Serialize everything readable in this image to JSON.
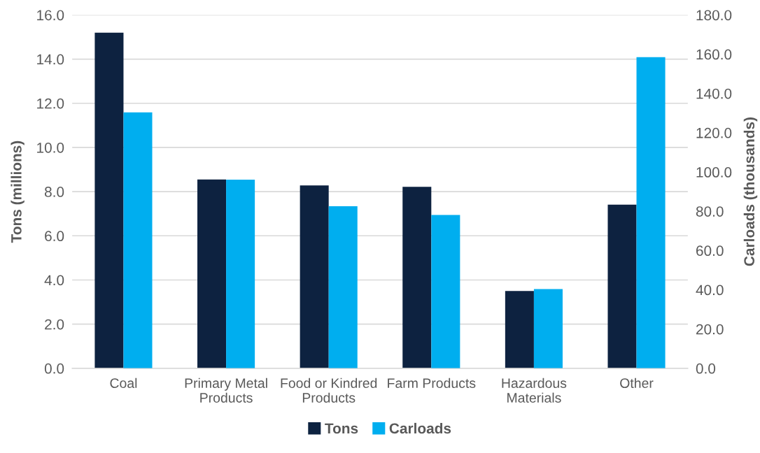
{
  "chart_data": {
    "type": "bar",
    "categories": [
      "Coal",
      "Primary Metal\nProducts",
      "Food or Kindred\nProducts",
      "Farm Products",
      "Hazardous\nMaterials",
      "Other"
    ],
    "series": [
      {
        "name": "Tons",
        "color": "#0d2240",
        "values": [
          15.2,
          8.55,
          8.28,
          8.22,
          3.5,
          7.41
        ]
      },
      {
        "name": "Carloads",
        "color": "#00aeef",
        "axis": "y2",
        "values": [
          130.4,
          96.1,
          82.6,
          78.1,
          40.4,
          158.5
        ]
      }
    ],
    "ylabel": "Tons (millions)",
    "y2label": "Carloads (thousands)",
    "ylim": [
      0,
      16
    ],
    "yticks": [
      {
        "value": 0,
        "label": "0.0"
      },
      {
        "value": 2,
        "label": "2.0"
      },
      {
        "value": 4,
        "label": "4.0"
      },
      {
        "value": 6,
        "label": "6.0"
      },
      {
        "value": 8,
        "label": "8.0"
      },
      {
        "value": 10,
        "label": "10.0"
      },
      {
        "value": 12,
        "label": "12.0"
      },
      {
        "value": 14,
        "label": "14.0"
      },
      {
        "value": 16,
        "label": "16.0"
      }
    ],
    "y2lim": [
      0,
      180
    ],
    "y2ticks": [
      {
        "value": 0,
        "label": "0.0"
      },
      {
        "value": 20,
        "label": "20.0"
      },
      {
        "value": 40,
        "label": "40.0"
      },
      {
        "value": 60,
        "label": "60.0"
      },
      {
        "value": 80,
        "label": "80.0"
      },
      {
        "value": 100,
        "label": "100.0"
      },
      {
        "value": 120,
        "label": "120.0"
      },
      {
        "value": 140,
        "label": "140.0"
      },
      {
        "value": 160,
        "label": "160.0"
      },
      {
        "value": 180,
        "label": "180.0"
      }
    ],
    "grid": "y",
    "legend": "bottom"
  }
}
